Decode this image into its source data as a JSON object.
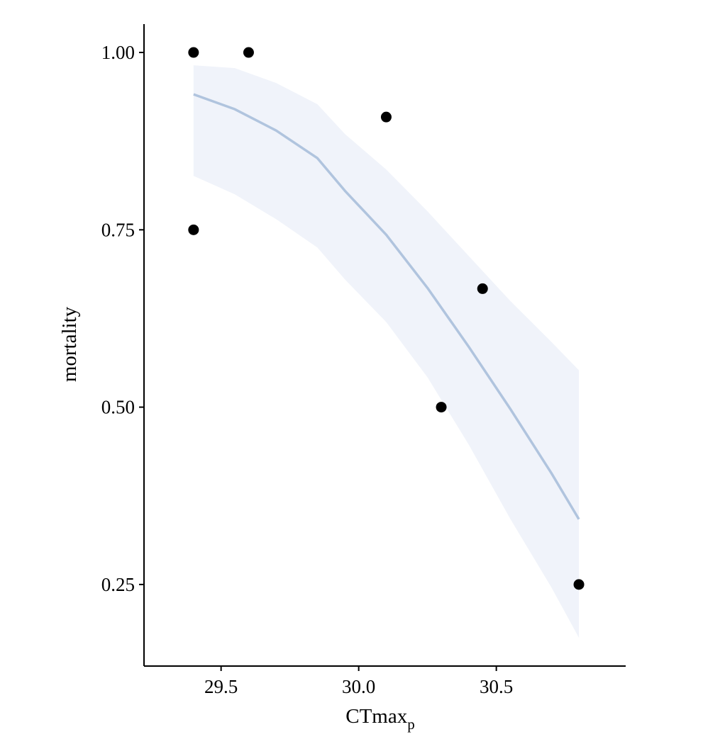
{
  "chart_data": {
    "type": "scatter",
    "xlabel": "CTmax",
    "xlabel_subscript": "p",
    "ylabel": "mortality",
    "xlim": [
      29.22,
      30.97
    ],
    "ylim": [
      0.135,
      1.04
    ],
    "xticks": [
      {
        "value": 29.5,
        "label": "29.5"
      },
      {
        "value": 30.0,
        "label": "30.0"
      },
      {
        "value": 30.5,
        "label": "30.5"
      }
    ],
    "yticks": [
      {
        "value": 0.25,
        "label": "0.25"
      },
      {
        "value": 0.5,
        "label": "0.50"
      },
      {
        "value": 0.75,
        "label": "0.75"
      },
      {
        "value": 1.0,
        "label": "1.00"
      }
    ],
    "grid": false,
    "legend": "none",
    "points": [
      {
        "x": 29.4,
        "y": 1.0
      },
      {
        "x": 29.6,
        "y": 1.0
      },
      {
        "x": 29.4,
        "y": 0.75
      },
      {
        "x": 30.1,
        "y": 0.909
      },
      {
        "x": 30.45,
        "y": 0.667
      },
      {
        "x": 30.3,
        "y": 0.5
      },
      {
        "x": 30.8,
        "y": 0.25
      }
    ],
    "fit": {
      "x": [
        29.4,
        29.55,
        29.7,
        29.85,
        29.95,
        30.1,
        30.25,
        30.4,
        30.55,
        30.7,
        30.8
      ],
      "y": [
        0.941,
        0.92,
        0.89,
        0.851,
        0.805,
        0.743,
        0.668,
        0.585,
        0.498,
        0.407,
        0.342
      ],
      "lower": [
        0.826,
        0.8,
        0.765,
        0.725,
        0.68,
        0.62,
        0.542,
        0.447,
        0.343,
        0.246,
        0.175
      ],
      "upper": [
        0.982,
        0.978,
        0.957,
        0.927,
        0.885,
        0.835,
        0.776,
        0.713,
        0.65,
        0.592,
        0.552
      ]
    },
    "colors": {
      "points": "#000000",
      "fit_line": "#B0C4DE",
      "ribbon": "#F0F3FA",
      "axis": "#000000"
    }
  }
}
